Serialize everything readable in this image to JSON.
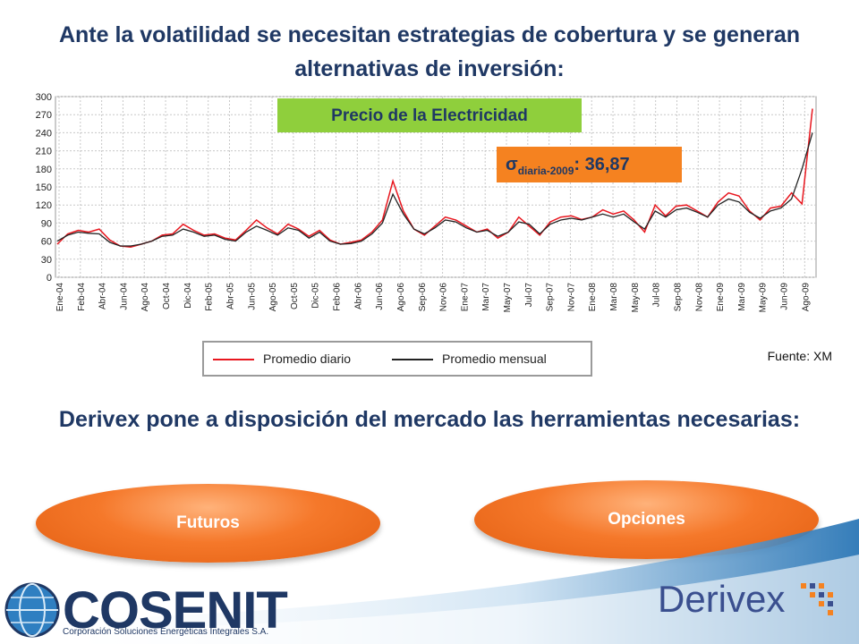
{
  "title_top": "Ante la volatilidad se necesitan estrategias de cobertura y se generan alternativas de inversión:",
  "banner": "Precio de la Electricidad",
  "sigma": {
    "symbol": "σ",
    "subscript": "diaria-2009",
    "value": ": 36,87"
  },
  "source": "Fuente: XM",
  "title_bottom": "Derivex pone a disposición del mercado las herramientas necesarias:",
  "buttons": {
    "futures": "Futuros",
    "options": "Opciones"
  },
  "logos": {
    "cosenit": "COSENIT",
    "cosenit_tagline": "Corporación Soluciones Energéticas Integrales S.A.",
    "derivex": "Derivex"
  },
  "chart_data": {
    "type": "line",
    "x_labels": [
      "Ene-04",
      "Feb-04",
      "Abr-04",
      "Jun-04",
      "Ago-04",
      "Oct-04",
      "Dic-04",
      "Feb-05",
      "Abr-05",
      "Jun-05",
      "Ago-05",
      "Oct-05",
      "Dic-05",
      "Feb-06",
      "Abr-06",
      "Jun-06",
      "Ago-06",
      "Sep-06",
      "Nov-06",
      "Ene-07",
      "Mar-07",
      "May-07",
      "Jul-07",
      "Sep-07",
      "Nov-07",
      "Ene-08",
      "Mar-08",
      "May-08",
      "Jul-08",
      "Sep-08",
      "Nov-08",
      "Ene-09",
      "Mar-09",
      "May-09",
      "Jun-09",
      "Ago-09"
    ],
    "yticks": [
      0,
      30,
      60,
      90,
      120,
      150,
      180,
      210,
      240,
      270,
      300
    ],
    "ylim": [
      0,
      300
    ],
    "series": [
      {
        "name": "Promedio diario",
        "color": "#e8171f",
        "values": [
          55,
          72,
          78,
          75,
          80,
          62,
          52,
          50,
          55,
          60,
          70,
          72,
          88,
          78,
          70,
          72,
          65,
          62,
          78,
          95,
          82,
          72,
          88,
          80,
          68,
          78,
          62,
          55,
          58,
          62,
          75,
          95,
          160,
          110,
          80,
          70,
          85,
          100,
          95,
          85,
          75,
          80,
          65,
          75,
          100,
          85,
          70,
          92,
          100,
          102,
          96,
          100,
          112,
          105,
          110,
          95,
          75,
          120,
          102,
          118,
          120,
          110,
          100,
          125,
          140,
          135,
          110,
          95,
          115,
          118,
          140,
          122,
          280
        ]
      },
      {
        "name": "Promedio mensual",
        "color": "#222222",
        "values": [
          60,
          70,
          75,
          73,
          72,
          58,
          52,
          52,
          55,
          60,
          68,
          70,
          80,
          75,
          68,
          70,
          63,
          60,
          75,
          85,
          78,
          70,
          82,
          78,
          65,
          75,
          60,
          55,
          56,
          60,
          72,
          90,
          138,
          105,
          80,
          72,
          82,
          95,
          92,
          82,
          75,
          78,
          68,
          75,
          92,
          88,
          72,
          88,
          95,
          98,
          95,
          100,
          105,
          100,
          105,
          92,
          80,
          110,
          100,
          112,
          115,
          108,
          100,
          120,
          130,
          125,
          108,
          98,
          110,
          115,
          130,
          180,
          240
        ]
      }
    ]
  },
  "chart_legend": [
    "Promedio diario",
    "Promedio mensual"
  ]
}
